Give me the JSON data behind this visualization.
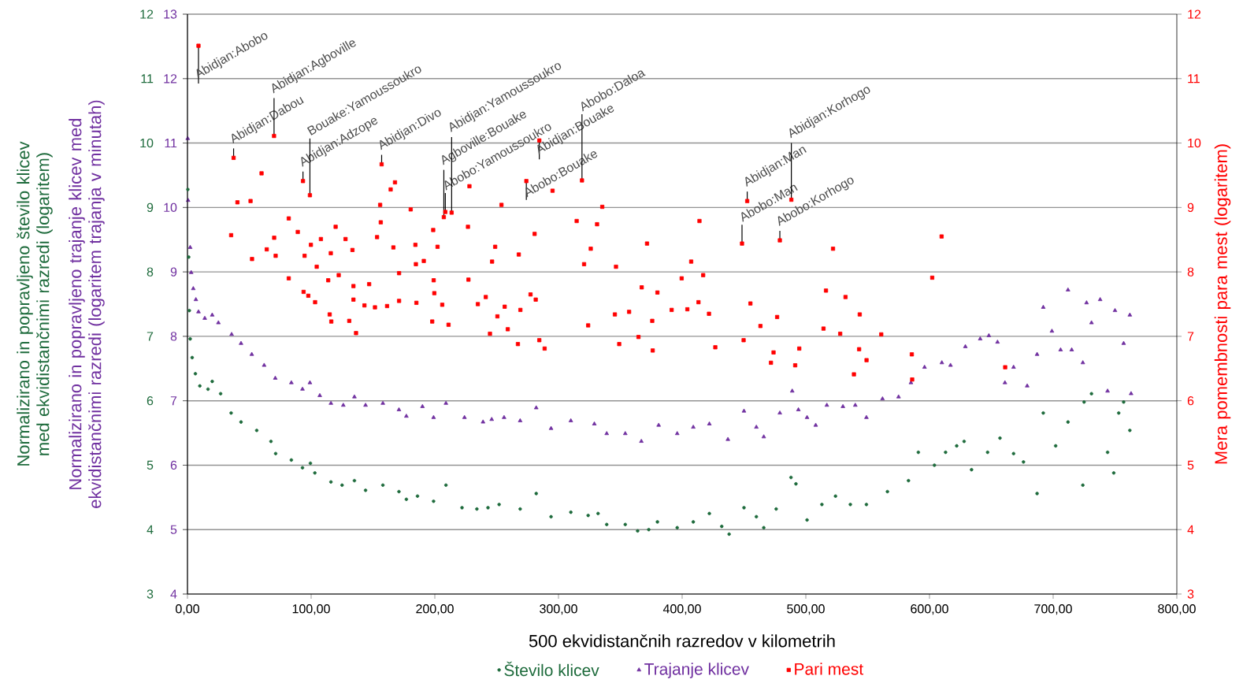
{
  "chart_data": {
    "type": "scatter",
    "xlabel": "500 ekvidistančnih razredov v kilometrih",
    "ylabel": "Normalizirano in popravljeno trajanje klicev med ekvidistančnimi razredi (logaritem trajanja v minutah)",
    "y2label": "Mera pomembnosti para mest (logaritem)",
    "y3label": "Normalizirano in popravljeno število klicev med ekvidistančnimi razredi (logaritem)",
    "xlim": [
      0,
      800
    ],
    "xticks": [
      {
        "value": 0,
        "label": "0,00"
      },
      {
        "value": 100,
        "label": "100,00"
      },
      {
        "value": 200,
        "label": "200,00"
      },
      {
        "value": 300,
        "label": "300,00"
      },
      {
        "value": 400,
        "label": "400,00"
      },
      {
        "value": 500,
        "label": "500,00"
      },
      {
        "value": 600,
        "label": "600,00"
      },
      {
        "value": 700,
        "label": "700,00"
      },
      {
        "value": 800,
        "label": "800,00"
      }
    ],
    "ylim": [
      4,
      13
    ],
    "yticks": [
      4,
      5,
      6,
      7,
      8,
      9,
      10,
      11,
      12,
      13
    ],
    "y2lim": [
      3,
      12
    ],
    "y2ticks": [
      3,
      4,
      5,
      6,
      7,
      8,
      9,
      10,
      11,
      12
    ],
    "y3lim": [
      3,
      12
    ],
    "y3ticks": [
      3,
      4,
      5,
      6,
      7,
      8,
      9,
      10,
      11,
      12
    ],
    "grid": "y",
    "legend": "bottom",
    "series": [
      {
        "name": "Število klicev",
        "color": "#1e6b3c",
        "marker": "circle",
        "axis": "y3",
        "x": [
          0.3,
          1,
          1.5,
          2.2,
          3.8,
          6.4,
          10,
          16.6,
          20,
          26.8,
          35.3,
          43.3,
          56,
          67.5,
          71.3,
          84,
          93,
          99.4,
          103,
          116,
          125,
          135,
          144,
          158,
          171,
          177,
          186,
          199,
          209,
          222,
          234,
          243,
          252,
          269,
          282,
          294,
          310,
          324,
          332,
          339,
          354,
          364,
          373,
          380,
          396,
          409,
          422,
          432,
          438,
          450,
          460,
          466,
          476,
          488,
          492,
          501,
          513,
          524,
          536,
          549,
          566,
          583,
          591,
          604,
          613,
          622,
          628,
          634,
          647,
          657,
          668,
          676,
          687,
          692,
          702,
          712,
          724,
          725,
          731,
          744,
          749,
          753,
          757,
          762
        ],
        "values": [
          9.28,
          8.23,
          7.4,
          6.96,
          6.67,
          6.42,
          6.23,
          6.18,
          6.3,
          6.11,
          5.81,
          5.67,
          5.54,
          5.37,
          5.18,
          5.08,
          4.96,
          5.03,
          4.88,
          4.74,
          4.69,
          4.76,
          4.61,
          4.69,
          4.59,
          4.47,
          4.52,
          4.44,
          4.69,
          4.34,
          4.32,
          4.34,
          4.39,
          4.32,
          4.56,
          4.2,
          4.27,
          4.22,
          4.25,
          4.08,
          4.08,
          3.98,
          4.0,
          4.12,
          4.03,
          4.12,
          4.25,
          4.05,
          3.93,
          4.34,
          4.2,
          4.03,
          4.32,
          4.81,
          4.71,
          4.15,
          4.39,
          4.52,
          4.39,
          4.39,
          4.59,
          4.76,
          5.2,
          5.0,
          5.2,
          5.3,
          5.37,
          4.93,
          5.2,
          5.42,
          5.18,
          5.05,
          4.56,
          5.81,
          5.3,
          5.67,
          4.69,
          5.98,
          6.11,
          5.2,
          4.88,
          5.81,
          5.98,
          5.54
        ]
      },
      {
        "name": "Trajanje klicev",
        "color": "#7030a0",
        "marker": "triangle",
        "x": [
          0.2,
          0.5,
          2.2,
          3,
          4.7,
          6.8,
          8.9,
          14,
          20,
          25,
          35.7,
          43.3,
          52,
          62,
          71,
          84,
          93,
          99,
          107,
          116,
          126,
          135,
          144,
          158,
          171,
          177,
          190,
          199,
          209,
          224,
          239,
          246,
          256,
          269,
          282,
          294,
          310,
          329,
          339,
          354,
          367,
          381,
          396,
          409,
          422,
          437,
          450,
          460,
          466,
          479,
          489,
          494,
          501,
          508,
          517,
          530,
          540,
          549,
          562,
          575,
          585,
          596,
          610,
          617,
          629,
          641,
          648,
          655,
          661,
          668,
          679,
          687,
          692,
          699,
          706,
          712,
          715,
          724,
          727,
          731,
          738,
          744,
          750,
          757,
          762,
          763
        ],
        "values": [
          11.07,
          10.11,
          9.38,
          8.99,
          8.74,
          8.57,
          8.38,
          8.28,
          8.33,
          8.21,
          8.03,
          7.89,
          7.72,
          7.55,
          7.35,
          7.28,
          7.18,
          7.28,
          7.08,
          6.96,
          6.93,
          7.06,
          6.93,
          6.96,
          6.86,
          6.76,
          6.91,
          6.74,
          6.96,
          6.74,
          6.67,
          6.71,
          6.74,
          6.69,
          6.89,
          6.57,
          6.69,
          6.64,
          6.49,
          6.49,
          6.37,
          6.62,
          6.49,
          6.59,
          6.64,
          6.4,
          6.84,
          6.59,
          6.44,
          6.81,
          7.15,
          6.86,
          6.74,
          6.62,
          6.93,
          6.91,
          6.93,
          6.74,
          7.03,
          7.06,
          7.28,
          7.52,
          7.59,
          7.55,
          7.84,
          7.96,
          8.01,
          7.91,
          7.28,
          7.52,
          7.23,
          7.72,
          8.45,
          8.08,
          7.79,
          8.72,
          7.79,
          7.59,
          8.52,
          8.21,
          8.57,
          7.15,
          8.4,
          7.89,
          8.33,
          7.11
        ]
      },
      {
        "name": "Pari mest",
        "color": "#ff0000",
        "marker": "square",
        "axis": "y2",
        "x": [
          8.9,
          37.3,
          70,
          93.4,
          99,
          157,
          208.5,
          207.3,
          213.6,
          284.5,
          274,
          319,
          448.4,
          452.6,
          488.3,
          479,
          40.4,
          51,
          59.9,
          35.3,
          52.2,
          64.1,
          71.3,
          70.1,
          81.9,
          89.2,
          81.9,
          94.7,
          99.8,
          104.5,
          93.9,
          97.7,
          103.2,
          107.9,
          115.9,
          119.8,
          113.8,
          115,
          116.3,
          122.3,
          127.8,
          133.4,
          134.2,
          134.2,
          130.8,
          136.3,
          143.1,
          146.9,
          151.6,
          153.3,
          156.3,
          155.8,
          164.3,
          167.8,
          166.5,
          171.1,
          161.4,
          171.1,
          180.5,
          184.3,
          184.7,
          185.1,
          191.1,
          198.7,
          199.1,
          199.6,
          206,
          202.2,
          197.9,
          211.1,
          226.8,
          228,
          227.2,
          234.8,
          241.2,
          244.6,
          246.3,
          248.8,
          253.9,
          250.6,
          256.5,
          259,
          267.9,
          269.2,
          267.2,
          280.7,
          284.5,
          288.8,
          277.4,
          281.6,
          295.2,
          314.7,
          335.4,
          331.2,
          326.1,
          320.7,
          346.5,
          371.6,
          367.3,
          380,
          407.3,
          414,
          417,
          399.6,
          391.5,
          404.2,
          413.2,
          421.7,
          426.8,
          324,
          345.6,
          357.1,
          375.8,
          376.2,
          364.7,
          349.1,
          455.2,
          476.8,
          463.3,
          473.9,
          471.8,
          494.7,
          491.4,
          449.7,
          516.3,
          522,
          514.3,
          532.1,
          527.8,
          543.6,
          543.1,
          549.1,
          561,
          538.9,
          586,
          585.7,
          602.2,
          609.8,
          661.2
        ],
        "values": [
          11.51,
          9.77,
          10.11,
          9.41,
          9.19,
          9.67,
          8.93,
          8.85,
          8.92,
          10.04,
          9.41,
          9.42,
          8.44,
          9.1,
          9.12,
          8.49,
          9.08,
          9.1,
          9.53,
          8.57,
          8.2,
          8.35,
          8.25,
          8.53,
          8.83,
          8.62,
          7.9,
          8.25,
          8.42,
          8.08,
          7.69,
          7.63,
          7.53,
          8.51,
          8.29,
          8.7,
          7.87,
          7.34,
          7.23,
          7.95,
          8.51,
          8.34,
          7.78,
          7.57,
          7.24,
          7.05,
          7.48,
          7.81,
          7.45,
          8.54,
          8.77,
          9.04,
          9.28,
          9.39,
          8.38,
          7.98,
          7.47,
          7.55,
          8.97,
          8.42,
          8.12,
          7.52,
          8.17,
          8.65,
          7.87,
          7.67,
          7.49,
          8.39,
          7.23,
          7.18,
          8.7,
          9.33,
          7.88,
          7.5,
          7.61,
          7.04,
          8.16,
          8.39,
          9.04,
          7.31,
          7.46,
          7.11,
          8.27,
          7.41,
          6.88,
          8.59,
          6.94,
          6.81,
          7.65,
          7.57,
          9.26,
          8.79,
          9.01,
          8.74,
          8.36,
          8.12,
          8.08,
          8.44,
          7.76,
          7.68,
          8.16,
          8.79,
          7.95,
          7.9,
          7.41,
          7.42,
          7.53,
          7.35,
          6.83,
          7.17,
          7.34,
          7.38,
          7.24,
          6.78,
          6.99,
          6.88,
          7.51,
          7.3,
          7.16,
          6.75,
          6.59,
          6.81,
          6.55,
          6.94,
          7.71,
          8.36,
          7.12,
          7.61,
          7.04,
          7.34,
          6.8,
          6.63,
          7.03,
          6.41,
          6.33,
          6.72,
          7.91,
          8.55,
          6.52
        ]
      }
    ],
    "annotations": [
      {
        "text": "Abidjan:Abobo",
        "x": 8.9,
        "y": 12.51
      },
      {
        "text": "Abidjan:Dabou",
        "x": 37.3,
        "y": 10.77
      },
      {
        "text": "Abidjan:Agboville",
        "x": 70,
        "y": 11.11
      },
      {
        "text": "Abidjan:Adzope",
        "x": 93.4,
        "y": 10.41
      },
      {
        "text": "Bouake:Yamoussoukro",
        "x": 99,
        "y": 10.19
      },
      {
        "text": "Abidjan:Divo",
        "x": 157,
        "y": 10.67
      },
      {
        "text": "Abobo:Yamoussoukro",
        "x": 208.5,
        "y": 9.93
      },
      {
        "text": "Agboville:Bouake",
        "x": 207.3,
        "y": 9.85
      },
      {
        "text": "Abidjan:Yamoussoukro",
        "x": 213.6,
        "y": 9.92
      },
      {
        "text": "Abidjan:Bouake",
        "x": 284.5,
        "y": 11.04
      },
      {
        "text": "Abobo:Bouake",
        "x": 274,
        "y": 10.41
      },
      {
        "text": "Abobo:Daloa",
        "x": 319,
        "y": 10.42
      },
      {
        "text": "Abobo:Man",
        "x": 448.4,
        "y": 9.44
      },
      {
        "text": "Abidjan:Man",
        "x": 452.6,
        "y": 10.1
      },
      {
        "text": "Abidjan:Korhogo",
        "x": 488.3,
        "y": 10.12
      },
      {
        "text": "Abobo:Korhogo",
        "x": 479,
        "y": 9.49
      }
    ]
  }
}
